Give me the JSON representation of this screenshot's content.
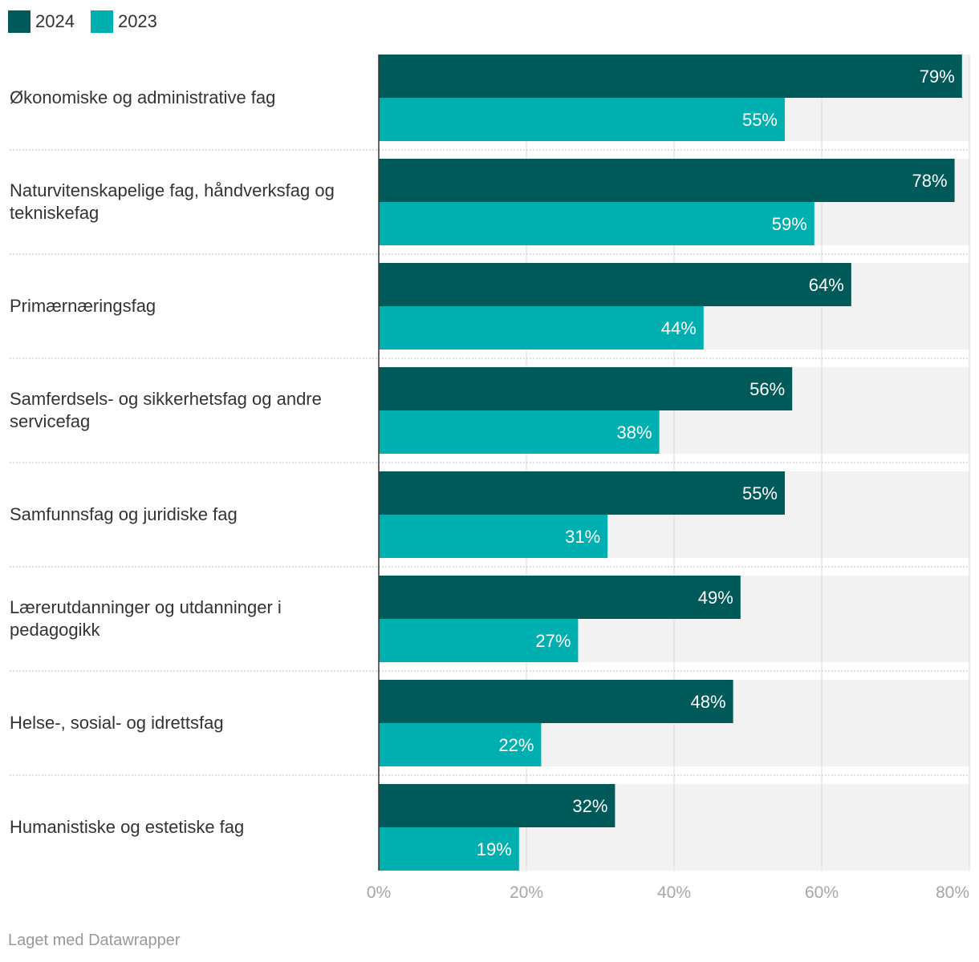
{
  "legend": {
    "items": [
      {
        "label": "2024",
        "color": "#005a5a"
      },
      {
        "label": "2023",
        "color": "#00b0b0"
      }
    ]
  },
  "chart_data": {
    "type": "bar",
    "orientation": "horizontal",
    "categories": [
      "Økonomiske og administrative fag",
      "Naturvitenskapelige fag, håndverksfag og tekniskefag",
      "Primærnæringsfag",
      "Samferdsels- og sikkerhetsfag og andre servicefag",
      "Samfunnsfag og juridiske fag",
      "Lærerutdanninger og utdanninger i pedagogikk",
      "Helse-, sosial- og idrettsfag",
      "Humanistiske og estetiske fag"
    ],
    "series": [
      {
        "name": "2024",
        "color": "#005a5a",
        "values": [
          79,
          78,
          64,
          56,
          55,
          49,
          48,
          32
        ]
      },
      {
        "name": "2023",
        "color": "#00b0b0",
        "values": [
          55,
          59,
          44,
          38,
          31,
          27,
          22,
          19
        ]
      }
    ],
    "value_suffix": "%",
    "xlim": [
      0,
      80
    ],
    "ticks": [
      0,
      20,
      40,
      60,
      80
    ],
    "tick_labels": [
      "0%",
      "20%",
      "40%",
      "60%",
      "80%"
    ],
    "grid": true,
    "legend_position": "top-left"
  },
  "footer": {
    "credit": "Laget med Datawrapper"
  }
}
